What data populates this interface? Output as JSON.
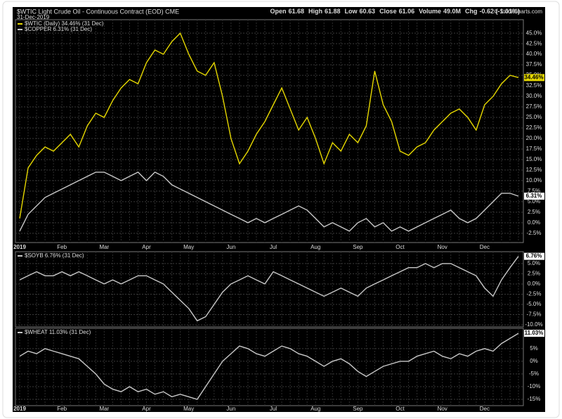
{
  "header": {
    "title": "$WTIC Light Crude Oil - Continuous Contract (EOD) CME",
    "date": "31-Dec-2019",
    "quote": [
      {
        "label": "Open",
        "value": "61.68"
      },
      {
        "label": "High",
        "value": "61.88"
      },
      {
        "label": "Low",
        "value": "60.63"
      },
      {
        "label": "Close",
        "value": "61.06"
      },
      {
        "label": "Volume",
        "value": "49.0M"
      },
      {
        "label": "Chg",
        "value": "-0.62 (-1.01%)"
      }
    ],
    "copyright": "© StockCharts.com"
  },
  "chart_data": [
    {
      "type": "line",
      "categories": [
        "2019",
        null,
        null,
        null,
        null,
        "Feb",
        null,
        null,
        null,
        null,
        "Mar",
        null,
        null,
        null,
        null,
        "Apr",
        null,
        null,
        null,
        null,
        "May",
        null,
        null,
        null,
        null,
        "Jun",
        null,
        null,
        null,
        null,
        "Jul",
        null,
        null,
        null,
        null,
        "Aug",
        null,
        null,
        null,
        null,
        "Sep",
        null,
        null,
        null,
        null,
        "Oct",
        null,
        null,
        null,
        null,
        "Nov",
        null,
        null,
        null,
        null,
        "Dec",
        null,
        null,
        null,
        null
      ],
      "ylim": [
        -4.7,
        48.2
      ],
      "yticks": [
        {
          "value": -2.5,
          "label": "-2.5%"
        },
        {
          "value": 0,
          "label": "0.0%"
        },
        {
          "value": 2.5,
          "label": "2.5%"
        },
        {
          "value": 5,
          "label": "5.0%"
        },
        {
          "value": 7.5,
          "label": "7.5%"
        },
        {
          "value": 10,
          "label": "10.0%"
        },
        {
          "value": 12.5,
          "label": "12.5%"
        },
        {
          "value": 15,
          "label": "15.0%"
        },
        {
          "value": 17.5,
          "label": "17.5%"
        },
        {
          "value": 20,
          "label": "20.0%"
        },
        {
          "value": 22.5,
          "label": "22.5%"
        },
        {
          "value": 25,
          "label": "25.0%"
        },
        {
          "value": 27.5,
          "label": "27.5%"
        },
        {
          "value": 30,
          "label": "30.0%"
        },
        {
          "value": 32.5,
          "label": "32.5%"
        },
        {
          "value": 35,
          "label": "35.0%"
        },
        {
          "value": 37.5,
          "label": "37.5%"
        },
        {
          "value": 40,
          "label": "40.0%"
        },
        {
          "value": 42.5,
          "label": "42.5%"
        },
        {
          "value": 45,
          "label": "45.0%"
        }
      ],
      "series": [
        {
          "name": "$WTIC (Daily) 34.46% (31 Dec)",
          "color": "#e6d800",
          "values": [
            1,
            13,
            16,
            18,
            17,
            19,
            21,
            18,
            23,
            26,
            25,
            29,
            32,
            34,
            33,
            38,
            41,
            40,
            43,
            45,
            40,
            36,
            35,
            38,
            30,
            20,
            14,
            17,
            21,
            24,
            28,
            32,
            27,
            22,
            25,
            20,
            14,
            19,
            17,
            21,
            19,
            23,
            36,
            28,
            24,
            17,
            16,
            18,
            19,
            22,
            24,
            26,
            27,
            25,
            22,
            28,
            30,
            33,
            35,
            34.46
          ],
          "value_labels": [
            null,
            null,
            null,
            null,
            null,
            null,
            null,
            null,
            null,
            null,
            null,
            null,
            null,
            null,
            null,
            null,
            null,
            null,
            null,
            null,
            null,
            null,
            null,
            null,
            null,
            null,
            null,
            null,
            null,
            null,
            null,
            null,
            null,
            null,
            null,
            null,
            null,
            null,
            null,
            null,
            null,
            null,
            null,
            null,
            null,
            null,
            null,
            null,
            null,
            null,
            null,
            null,
            null,
            null,
            null,
            null,
            null,
            null,
            null,
            "34.46%"
          ]
        },
        {
          "name": "$COPPER 6.31% (31 Dec)",
          "color": "#c8c8c8",
          "values": [
            -2,
            2,
            4,
            6,
            7,
            8,
            9,
            10,
            11,
            12,
            12,
            11,
            10,
            11,
            12,
            10,
            12,
            11,
            9,
            8,
            7,
            6,
            5,
            4,
            3,
            2,
            1,
            0,
            1,
            0,
            1,
            2,
            3,
            4,
            3,
            1,
            -1,
            0,
            -1,
            -2,
            0,
            1,
            -1,
            0,
            -2,
            -1,
            -2,
            -1,
            0,
            1,
            2,
            3,
            1,
            0,
            1,
            3,
            5,
            7,
            7,
            6.31
          ],
          "value_labels": [
            null,
            null,
            null,
            null,
            null,
            null,
            null,
            null,
            null,
            null,
            null,
            null,
            null,
            null,
            null,
            null,
            null,
            null,
            null,
            null,
            null,
            null,
            null,
            null,
            null,
            null,
            null,
            null,
            null,
            null,
            null,
            null,
            null,
            null,
            null,
            null,
            null,
            null,
            null,
            null,
            null,
            null,
            null,
            null,
            null,
            null,
            null,
            null,
            null,
            null,
            null,
            null,
            null,
            null,
            null,
            null,
            null,
            null,
            null,
            "6.31%"
          ]
        }
      ]
    },
    {
      "type": "line",
      "ylim": [
        -10.5,
        7.9
      ],
      "yticks": [
        {
          "value": -10,
          "label": "-10.0%"
        },
        {
          "value": -7.5,
          "label": "-7.5%"
        },
        {
          "value": -5,
          "label": "-5.0%"
        },
        {
          "value": -2.5,
          "label": "-2.5%"
        },
        {
          "value": 0,
          "label": "0.0%"
        },
        {
          "value": 2.5,
          "label": "2.5%"
        },
        {
          "value": 5,
          "label": "5.0%"
        }
      ],
      "series": [
        {
          "name": "$SOYB 6.76% (31 Dec)",
          "color": "#c8c8c8",
          "values": [
            1,
            2,
            3,
            2,
            2,
            3,
            2,
            3,
            2,
            1,
            0,
            1,
            0,
            1,
            2,
            2,
            1,
            0,
            -2,
            -4,
            -6,
            -9,
            -8,
            -5,
            -2,
            0,
            1,
            2,
            1,
            0,
            3,
            2,
            1,
            0,
            -1,
            -2,
            -3,
            -2,
            -1,
            -2,
            -3,
            -1,
            0,
            1,
            2,
            3,
            4,
            4,
            5,
            4,
            5,
            5,
            4,
            3,
            2,
            -1,
            -3,
            1,
            4,
            6.76
          ],
          "value_labels": [
            null,
            null,
            null,
            null,
            null,
            null,
            null,
            null,
            null,
            null,
            null,
            null,
            null,
            null,
            null,
            null,
            null,
            null,
            null,
            null,
            null,
            null,
            null,
            null,
            null,
            null,
            null,
            null,
            null,
            null,
            null,
            null,
            null,
            null,
            null,
            null,
            null,
            null,
            null,
            null,
            null,
            null,
            null,
            null,
            null,
            null,
            null,
            null,
            null,
            null,
            null,
            null,
            null,
            null,
            null,
            null,
            null,
            null,
            null,
            "6.76%"
          ]
        }
      ]
    },
    {
      "type": "line",
      "categories": [
        "2019",
        null,
        null,
        null,
        null,
        "Feb",
        null,
        null,
        null,
        null,
        "Mar",
        null,
        null,
        null,
        null,
        "Apr",
        null,
        null,
        null,
        null,
        "May",
        null,
        null,
        null,
        null,
        "Jun",
        null,
        null,
        null,
        null,
        "Jul",
        null,
        null,
        null,
        null,
        "Aug",
        null,
        null,
        null,
        null,
        "Sep",
        null,
        null,
        null,
        null,
        "Oct",
        null,
        null,
        null,
        null,
        "Nov",
        null,
        null,
        null,
        null,
        "Dec",
        null,
        null,
        null,
        null
      ],
      "ylim": [
        -17.5,
        13
      ],
      "yticks": [
        {
          "value": -15,
          "label": "-15%"
        },
        {
          "value": -10,
          "label": "-10%"
        },
        {
          "value": -5,
          "label": "-5%"
        },
        {
          "value": 0,
          "label": "0%"
        },
        {
          "value": 5,
          "label": "5%"
        }
      ],
      "series": [
        {
          "name": "$WHEAT 11.03% (31 Dec)",
          "color": "#c8c8c8",
          "values": [
            2,
            4,
            3,
            5,
            4,
            3,
            2,
            1,
            -2,
            -5,
            -9,
            -11,
            -12,
            -10,
            -12,
            -11,
            -13,
            -12,
            -14,
            -13,
            -14,
            -15,
            -10,
            -5,
            0,
            3,
            6,
            5,
            3,
            2,
            4,
            6,
            5,
            3,
            2,
            0,
            -2,
            0,
            1,
            -1,
            -4,
            -6,
            -4,
            -2,
            -1,
            0,
            0,
            2,
            3,
            4,
            2,
            1,
            3,
            2,
            4,
            5,
            4,
            7,
            9,
            11.03
          ],
          "value_labels": [
            null,
            null,
            null,
            null,
            null,
            null,
            null,
            null,
            null,
            null,
            null,
            null,
            null,
            null,
            null,
            null,
            null,
            null,
            null,
            null,
            null,
            null,
            null,
            null,
            null,
            null,
            null,
            null,
            null,
            null,
            null,
            null,
            null,
            null,
            null,
            null,
            null,
            null,
            null,
            null,
            null,
            null,
            null,
            null,
            null,
            null,
            null,
            null,
            null,
            null,
            null,
            null,
            null,
            null,
            null,
            null,
            null,
            null,
            null,
            "11.03%"
          ]
        }
      ]
    }
  ]
}
